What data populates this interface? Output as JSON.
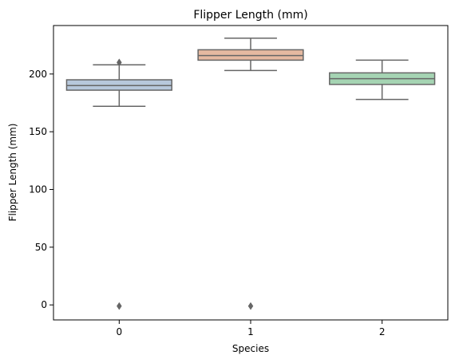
{
  "chart_data": {
    "type": "box",
    "title": "Flipper Length (mm)",
    "xlabel": "Species",
    "ylabel": "Flipper Length (mm)",
    "ylim": [
      -13,
      242
    ],
    "yticks": [
      0,
      50,
      100,
      150,
      200
    ],
    "categories": [
      "0",
      "1",
      "2"
    ],
    "boxes": [
      {
        "category": "0",
        "whisker_low": 172,
        "q1": 186,
        "median": 190,
        "q3": 195,
        "whisker_high": 208,
        "outliers": [
          -1,
          210
        ],
        "fill": "#b7c8dc"
      },
      {
        "category": "1",
        "whisker_low": 203,
        "q1": 212,
        "median": 216,
        "q3": 221,
        "whisker_high": 231,
        "outliers": [
          -1
        ],
        "fill": "#e5b9a1"
      },
      {
        "category": "2",
        "whisker_low": 178,
        "q1": 191,
        "median": 196,
        "q3": 201,
        "whisker_high": 212,
        "outliers": [],
        "fill": "#a5d4b3"
      }
    ],
    "grid": false,
    "line_color": "#666666"
  }
}
